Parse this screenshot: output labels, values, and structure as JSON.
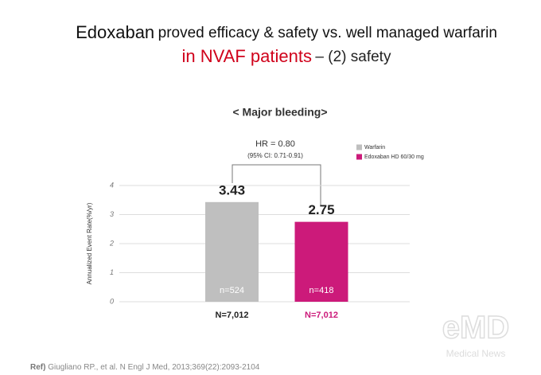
{
  "slide_title": {
    "line1": [
      "Edoxaban",
      "proved efficacy & safety vs. well managed warfarin"
    ],
    "line2": [
      "in NVAF patients",
      "– (2) safety"
    ]
  },
  "chart_data": {
    "type": "bar",
    "title": "< Major bleeding>",
    "y_label": "Annualized Event Rate(%/yr)",
    "categories": [
      "N=7,012",
      "N=7,012"
    ],
    "series": [
      {
        "name": "Warfarin",
        "color": "#bfbfbf",
        "values": [
          3.43,
          null
        ],
        "sample_labels": [
          "n=524",
          null
        ]
      },
      {
        "name": "Edoxaban HD 60/30 mg",
        "color": "#cc1a7a",
        "values": [
          null,
          2.75
        ],
        "sample_labels": [
          null,
          "n=418"
        ]
      }
    ],
    "ylim": [
      0,
      4
    ],
    "yticks": [
      0,
      1,
      2,
      3,
      4
    ],
    "grid": true,
    "annotations": [
      "HR = 0.80",
      "(95% CI: 0.71-0.91)"
    ]
  },
  "reference": [
    "Ref)",
    "Giugliano RP., et al. N Engl J Med, 2013;369(22):2093-2104"
  ],
  "watermark": [
    "eMD",
    "Medical News"
  ]
}
